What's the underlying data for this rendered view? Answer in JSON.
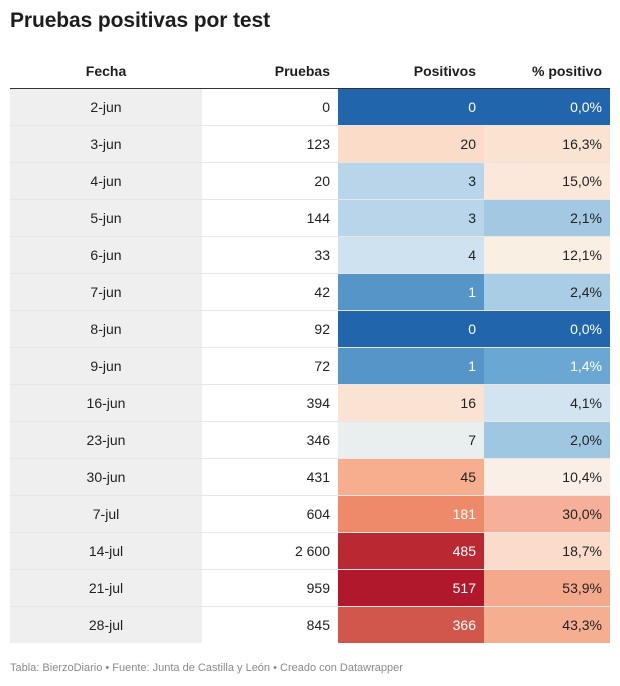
{
  "title": "Pruebas positivas por test",
  "footer": "Tabla: BierzoDiario • Fuente: Junta de Castilla y León • Creado con Datawrapper",
  "chart_data": {
    "type": "table",
    "columns": [
      "Fecha",
      "Pruebas",
      "Positivos",
      "% positivo"
    ],
    "rows": [
      {
        "fecha": "2-jun",
        "pruebas": "0",
        "positivos": "0",
        "pct": "0,0%",
        "pos_color": "#2166ac",
        "pos_text": "#ffffff",
        "pct_color": "#2166ac",
        "pct_text": "#ffffff"
      },
      {
        "fecha": "3-jun",
        "pruebas": "123",
        "positivos": "20",
        "pct": "16,3%",
        "pos_color": "#fbdcc8",
        "pos_text": "#222222",
        "pct_color": "#fbe3d2",
        "pct_text": "#222222"
      },
      {
        "fecha": "4-jun",
        "pruebas": "20",
        "positivos": "3",
        "pct": "15,0%",
        "pos_color": "#b8d5e9",
        "pos_text": "#222222",
        "pct_color": "#fbe8da",
        "pct_text": "#222222"
      },
      {
        "fecha": "5-jun",
        "pruebas": "144",
        "positivos": "3",
        "pct": "2,1%",
        "pos_color": "#b8d5e9",
        "pos_text": "#222222",
        "pct_color": "#a3c9e2",
        "pct_text": "#222222"
      },
      {
        "fecha": "6-jun",
        "pruebas": "33",
        "positivos": "4",
        "pct": "12,1%",
        "pos_color": "#cfe2ef",
        "pos_text": "#222222",
        "pct_color": "#faefe3",
        "pct_text": "#222222"
      },
      {
        "fecha": "7-jun",
        "pruebas": "42",
        "positivos": "1",
        "pct": "2,4%",
        "pos_color": "#5595c8",
        "pos_text": "#ffffff",
        "pct_color": "#a8cde4",
        "pct_text": "#222222"
      },
      {
        "fecha": "8-jun",
        "pruebas": "92",
        "positivos": "0",
        "pct": "0,0%",
        "pos_color": "#2166ac",
        "pos_text": "#ffffff",
        "pct_color": "#2166ac",
        "pct_text": "#ffffff"
      },
      {
        "fecha": "9-jun",
        "pruebas": "72",
        "positivos": "1",
        "pct": "1,4%",
        "pos_color": "#5595c8",
        "pos_text": "#ffffff",
        "pct_color": "#6aa8d3",
        "pct_text": "#ffffff"
      },
      {
        "fecha": "16-jun",
        "pruebas": "394",
        "positivos": "16",
        "pct": "4,1%",
        "pos_color": "#fbe3d3",
        "pos_text": "#222222",
        "pct_color": "#d2e4f0",
        "pct_text": "#222222"
      },
      {
        "fecha": "23-jun",
        "pruebas": "346",
        "positivos": "7",
        "pct": "2,0%",
        "pos_color": "#e9efef",
        "pos_text": "#222222",
        "pct_color": "#a0c7e1",
        "pct_text": "#222222"
      },
      {
        "fecha": "30-jun",
        "pruebas": "431",
        "positivos": "45",
        "pct": "10,4%",
        "pos_color": "#f6ae8e",
        "pos_text": "#222222",
        "pct_color": "#f9efe6",
        "pct_text": "#222222"
      },
      {
        "fecha": "7-jul",
        "pruebas": "604",
        "positivos": "181",
        "pct": "30,0%",
        "pos_color": "#ee8a69",
        "pos_text": "#ffffff",
        "pct_color": "#f6b09a",
        "pct_text": "#222222"
      },
      {
        "fecha": "14-jul",
        "pruebas": "2 600",
        "positivos": "485",
        "pct": "18,7%",
        "pos_color": "#ba2831",
        "pos_text": "#ffffff",
        "pct_color": "#fbdccb",
        "pct_text": "#222222"
      },
      {
        "fecha": "21-jul",
        "pruebas": "959",
        "positivos": "517",
        "pct": "53,9%",
        "pos_color": "#b2182b",
        "pos_text": "#ffffff",
        "pct_color": "#f5a98c",
        "pct_text": "#222222"
      },
      {
        "fecha": "28-jul",
        "pruebas": "845",
        "positivos": "366",
        "pct": "43,3%",
        "pos_color": "#d1564b",
        "pos_text": "#ffffff",
        "pct_color": "#f6ae91",
        "pct_text": "#222222"
      }
    ]
  }
}
